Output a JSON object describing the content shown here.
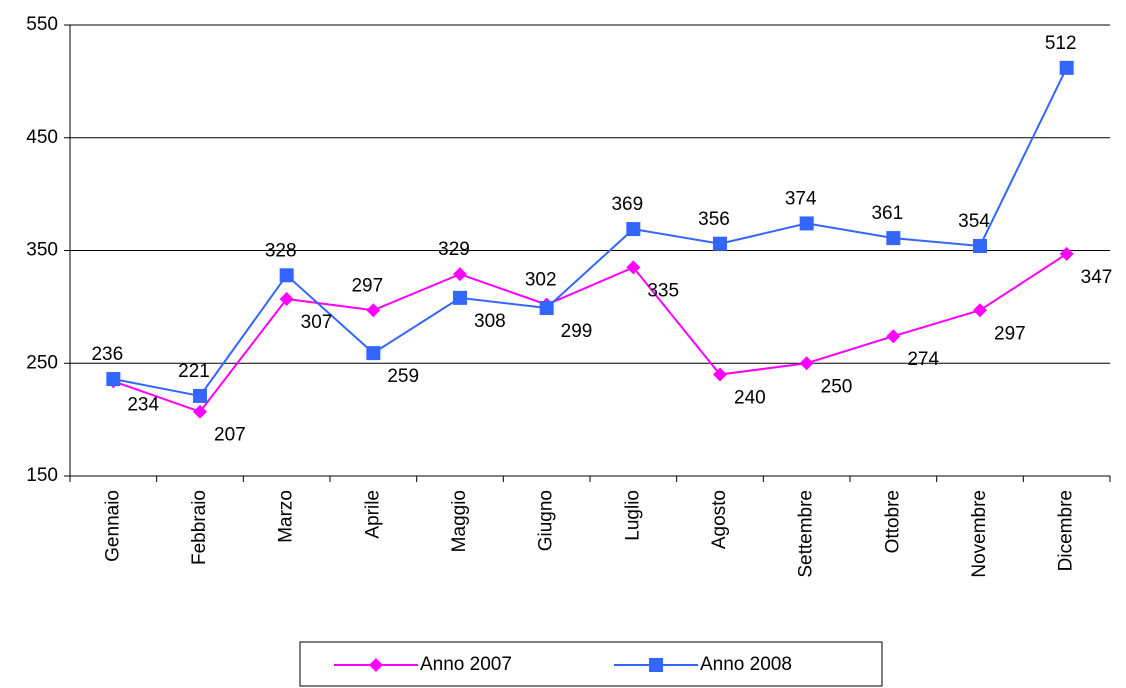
{
  "chart_data": {
    "type": "line",
    "categories": [
      "Gennaio",
      "Febbraio",
      "Marzo",
      "Aprile",
      "Maggio",
      "Giugno",
      "Luglio",
      "Agosto",
      "Settembre",
      "Ottobre",
      "Novembre",
      "Dicembre"
    ],
    "series": [
      {
        "name": "Anno 2007",
        "color": "#ff00ff",
        "marker": "diamond",
        "values": [
          234,
          207,
          307,
          297,
          329,
          302,
          335,
          240,
          250,
          274,
          297,
          347
        ]
      },
      {
        "name": "Anno 2008",
        "color": "#3366ff",
        "marker": "square",
        "values": [
          236,
          221,
          328,
          259,
          308,
          299,
          369,
          356,
          374,
          361,
          354,
          512
        ]
      }
    ],
    "ylim": [
      150,
      550
    ],
    "yticks": [
      150,
      250,
      350,
      450,
      550
    ],
    "grid": true,
    "legend": "bottom"
  }
}
